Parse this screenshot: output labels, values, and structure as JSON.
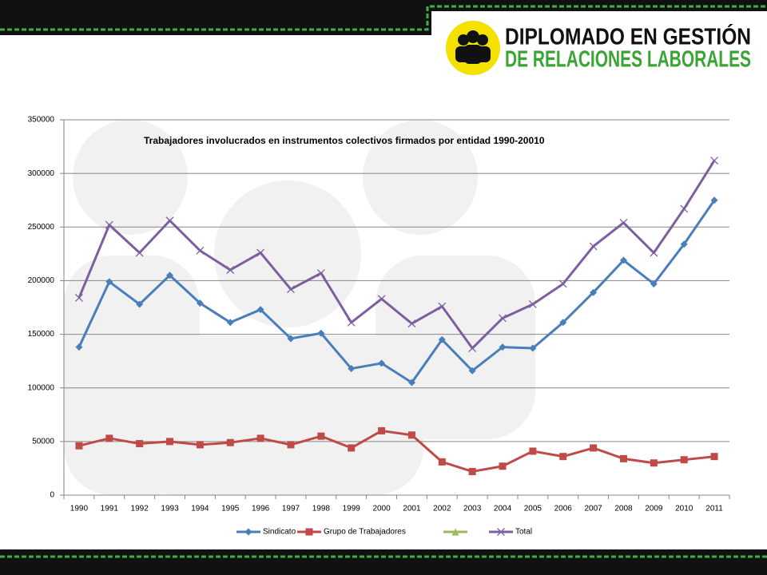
{
  "logo": {
    "line1": "DIPLOMADO EN GESTIÓN",
    "line2": "DE RELACIONES LABORALES"
  },
  "chart_data": {
    "type": "line",
    "title": "Trabajadores involucrados en  instrumentos colectivos firmados por entidad  1990-20010",
    "categories": [
      "1990",
      "1991",
      "1992",
      "1993",
      "1994",
      "1995",
      "1996",
      "1997",
      "1998",
      "1999",
      "2000",
      "2001",
      "2002",
      "2003",
      "2004",
      "2005",
      "2006",
      "2007",
      "2008",
      "2009",
      "2010",
      "2011"
    ],
    "series": [
      {
        "name": "Sindicato",
        "color": "#4a7ebb",
        "marker": "diamond",
        "values": [
          138000,
          199000,
          178000,
          205000,
          179000,
          161000,
          173000,
          146000,
          151000,
          118000,
          123000,
          105000,
          145000,
          116000,
          138000,
          137000,
          161000,
          189000,
          219000,
          197000,
          234000,
          275000
        ]
      },
      {
        "name": "Grupo de Trabajadores",
        "color": "#be4b48",
        "marker": "square",
        "values": [
          46000,
          53000,
          48000,
          50000,
          47000,
          49000,
          53000,
          47000,
          55000,
          44000,
          60000,
          56000,
          31000,
          22000,
          27000,
          41000,
          36000,
          44000,
          34000,
          30000,
          33000,
          36000
        ]
      },
      {
        "name": null,
        "color": "#9bbb59",
        "marker": "triangle",
        "values": [
          null,
          null,
          null,
          null,
          null,
          null,
          null,
          null,
          null,
          null,
          null,
          null,
          null,
          null,
          null,
          null,
          null,
          null,
          null,
          null,
          null,
          null
        ]
      },
      {
        "name": "Total",
        "color": "#7d5fa0",
        "marker": "x",
        "values": [
          184000,
          252000,
          226000,
          256000,
          228000,
          210000,
          226000,
          192000,
          207000,
          161000,
          183000,
          160000,
          176000,
          137000,
          165000,
          178000,
          197000,
          232000,
          254000,
          226000,
          267000,
          312000
        ]
      }
    ],
    "ylim": [
      0,
      350000
    ],
    "yticks": [
      0,
      50000,
      100000,
      150000,
      200000,
      250000,
      300000,
      350000
    ],
    "grid": true,
    "legend": "bottom"
  }
}
